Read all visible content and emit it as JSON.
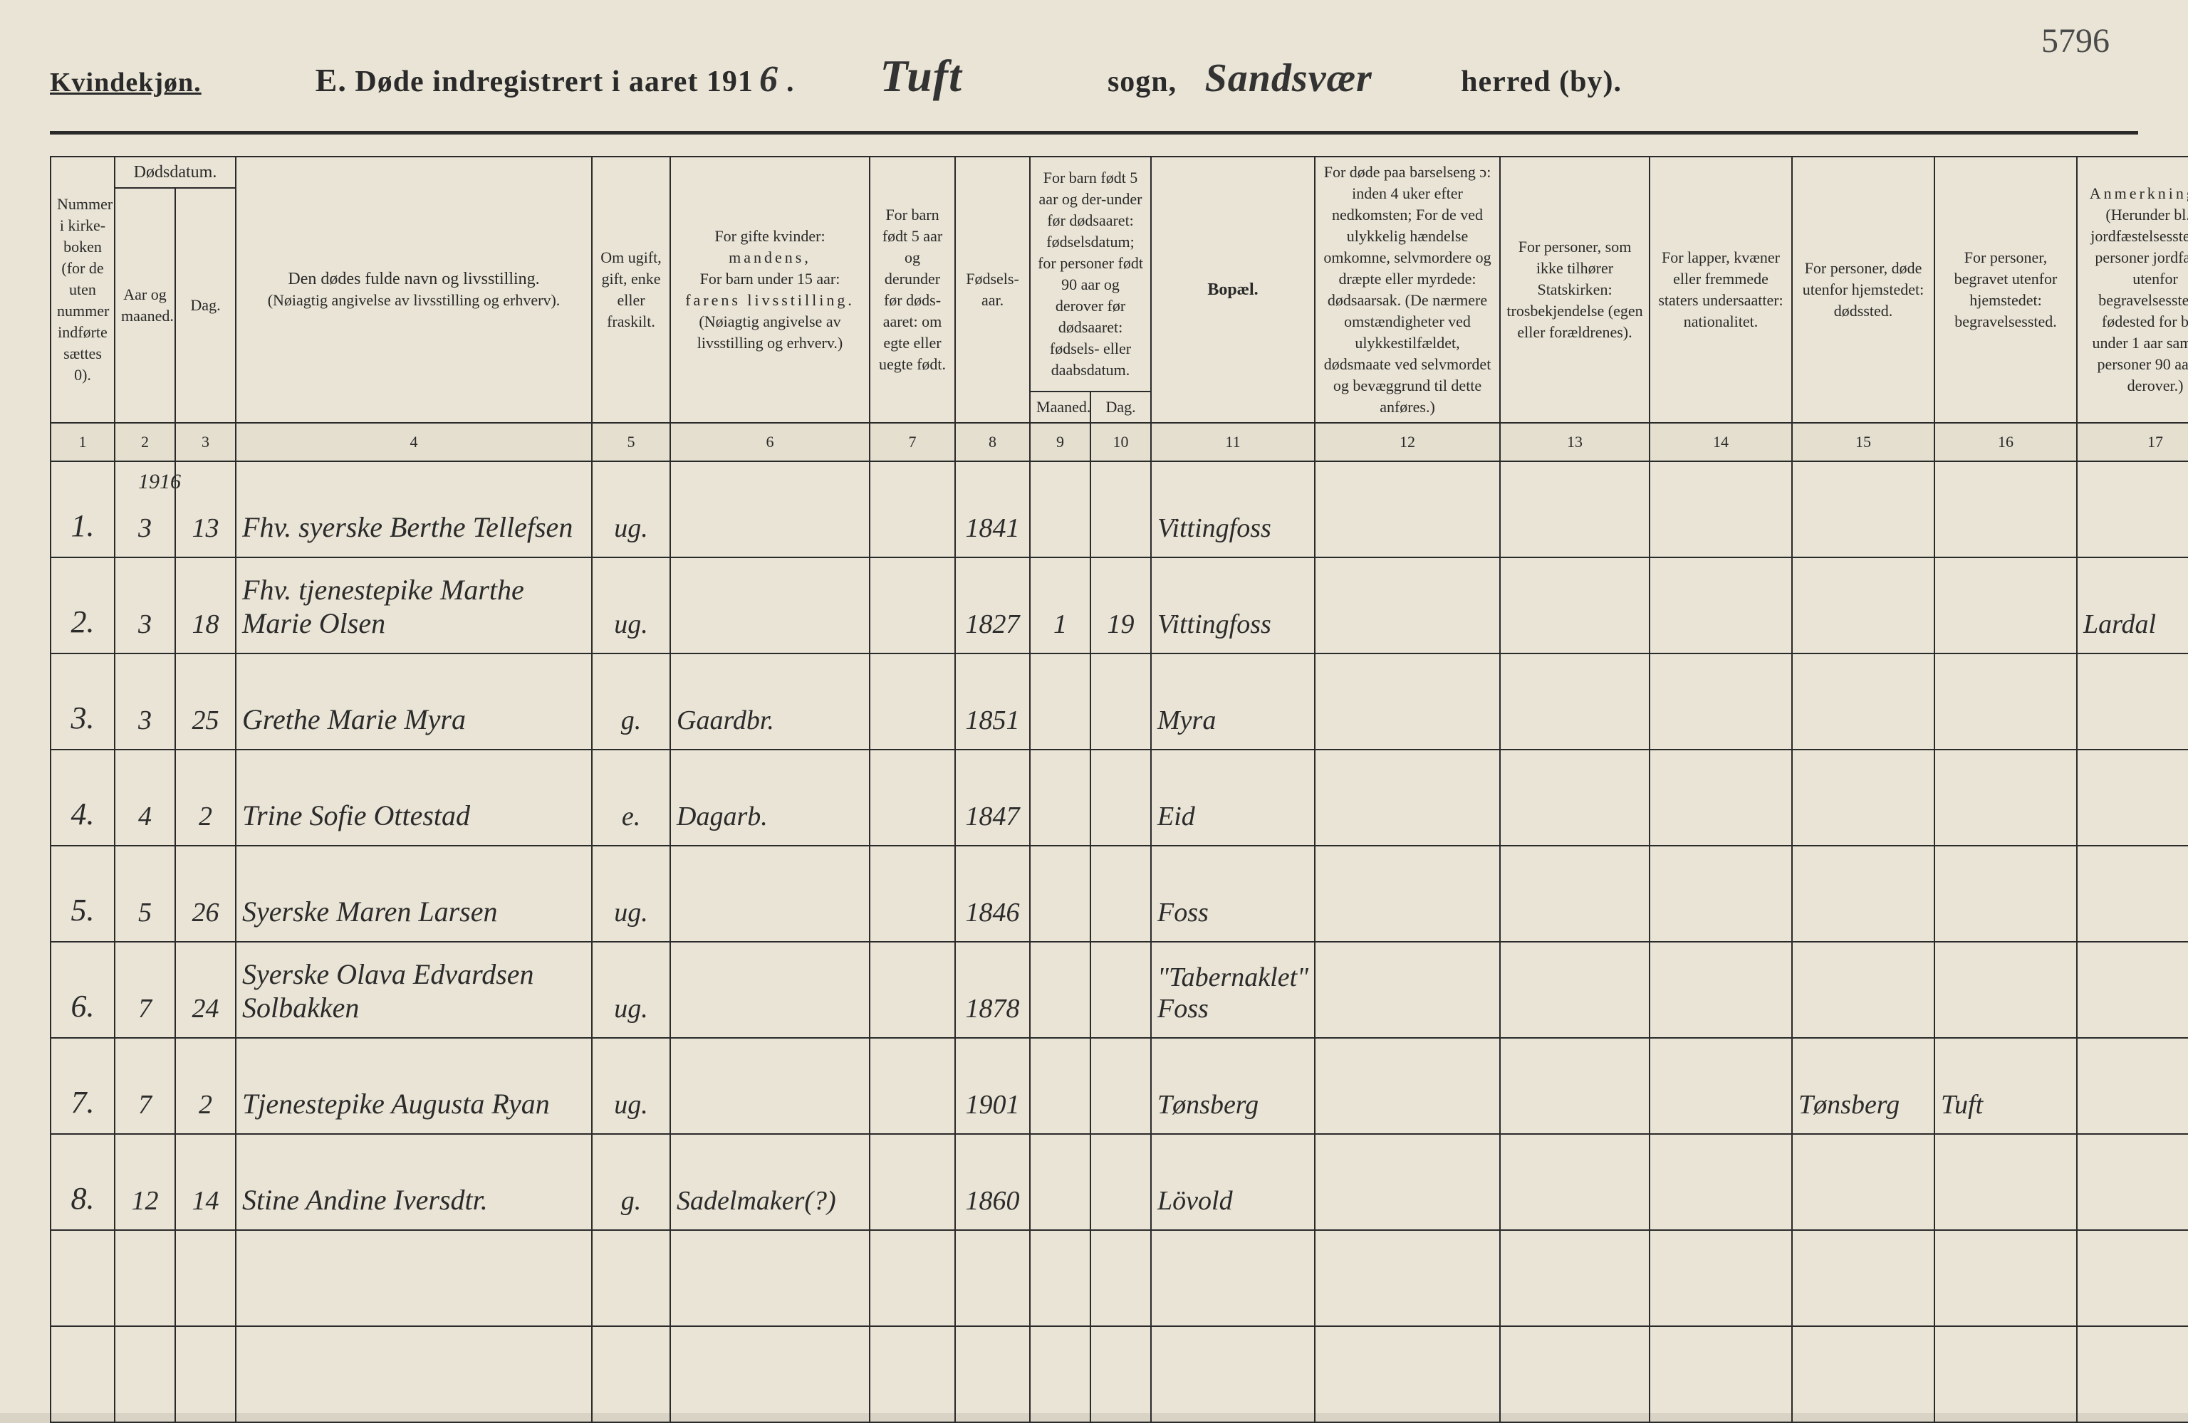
{
  "page_number_handwritten": "5796",
  "header": {
    "gender_label": "Kvindekjøn.",
    "title_prefix": "E.",
    "title_text": "Døde indregistrert i aaret 191",
    "year_suffix_handwritten": "6",
    "period": ".",
    "parish_handwritten": "Tuft",
    "parish_label": "sogn,",
    "district_handwritten": "Sandsvær",
    "district_label": "herred (by)."
  },
  "columns": {
    "c1": "Nummer i kirke-boken (for de uten nummer indførte sættes 0).",
    "c2_group": "Dødsdatum.",
    "c2": "Aar og maaned.",
    "c3": "Dag.",
    "c4_line1": "Den dødes fulde navn og livsstilling.",
    "c4_line2": "(Nøiagtig angivelse av livsstilling og erhverv).",
    "c5": "Om ugift, gift, enke eller fraskilt.",
    "c6_line1": "For gifte kvinder:",
    "c6_line2": "mandens,",
    "c6_line3": "For barn under 15 aar:",
    "c6_line4": "farens livsstilling.",
    "c6_line5": "(Nøiagtig angivelse av livsstilling og erhverv.)",
    "c7": "For barn født 5 aar og derunder før døds-aaret: om egte eller uegte født.",
    "c8": "Fødsels-aar.",
    "c9_10_top": "For barn født 5 aar og der-under før dødsaaret: fødselsdatum; for personer født 90 aar og derover før dødsaaret: fødsels- eller daabsdatum.",
    "c9": "Maaned.",
    "c10": "Dag.",
    "c11": "Bopæl.",
    "c12": "For døde paa barselseng ɔ: inden 4 uker efter nedkomsten; For de ved ulykkelig hændelse omkomne, selvmordere og dræpte eller myrdede: dødsaarsak. (De nærmere omstændigheter ved ulykkestilfældet, dødsmaate ved selvmordet og bevæggrund til dette anføres.)",
    "c13": "For personer, som ikke tilhører Statskirken: trosbekjendelse (egen eller forældrenes).",
    "c14": "For lapper, kvæner eller fremmede staters undersaatter: nationalitet.",
    "c15": "For personer, døde utenfor hjemstedet: dødssted.",
    "c16": "For personer, begravet utenfor hjemstedet: begravelsessted.",
    "c17_title": "Anmerkninger.",
    "c17_body": "(Herunder bl. a. jordfæstelsessted for personer jordfæstet utenfor begravelsesstedet, fødested for barn under 1 aar samt for personer 90 aar og derover.)",
    "numbers": [
      "1",
      "2",
      "3",
      "4",
      "5",
      "6",
      "7",
      "8",
      "9",
      "10",
      "11",
      "12",
      "13",
      "14",
      "15",
      "16",
      "17"
    ]
  },
  "year_over_first_row": "1916",
  "rows": [
    {
      "n": "1.",
      "month": "3",
      "day": "13",
      "name": "Fhv. syerske Berthe Tellefsen",
      "status": "ug.",
      "col6": "",
      "col7": "",
      "birth": "1841",
      "m9": "",
      "d10": "",
      "residence": "Vittingfoss",
      "c12": "",
      "c13": "",
      "c14": "",
      "c15": "",
      "c16": "",
      "c17": ""
    },
    {
      "n": "2.",
      "month": "3",
      "day": "18",
      "name": "Fhv. tjenestepike Marthe Marie Olsen",
      "status": "ug.",
      "col6": "",
      "col7": "",
      "birth": "1827",
      "m9": "1",
      "d10": "19",
      "residence": "Vittingfoss",
      "c12": "",
      "c13": "",
      "c14": "",
      "c15": "",
      "c16": "",
      "c17": "Lardal"
    },
    {
      "n": "3.",
      "month": "3",
      "day": "25",
      "name": "Grethe Marie Myra",
      "status": "g.",
      "col6": "Gaardbr.",
      "col7": "",
      "birth": "1851",
      "m9": "",
      "d10": "",
      "residence": "Myra",
      "c12": "",
      "c13": "",
      "c14": "",
      "c15": "",
      "c16": "",
      "c17": ""
    },
    {
      "n": "4.",
      "month": "4",
      "day": "2",
      "name": "Trine Sofie Ottestad",
      "status": "e.",
      "col6": "Dagarb.",
      "col7": "",
      "birth": "1847",
      "m9": "",
      "d10": "",
      "residence": "Eid",
      "c12": "",
      "c13": "",
      "c14": "",
      "c15": "",
      "c16": "",
      "c17": ""
    },
    {
      "n": "5.",
      "month": "5",
      "day": "26",
      "name": "Syerske Maren Larsen",
      "status": "ug.",
      "col6": "",
      "col7": "",
      "birth": "1846",
      "m9": "",
      "d10": "",
      "residence": "Foss",
      "c12": "",
      "c13": "",
      "c14": "",
      "c15": "",
      "c16": "",
      "c17": ""
    },
    {
      "n": "6.",
      "month": "7",
      "day": "24",
      "name": "Syerske Olava Edvardsen  Solbakken",
      "status": "ug.",
      "col6": "",
      "col7": "",
      "birth": "1878",
      "m9": "",
      "d10": "",
      "residence": "\"Tabernaklet\" Foss",
      "c12": "",
      "c13": "",
      "c14": "",
      "c15": "",
      "c16": "",
      "c17": ""
    },
    {
      "n": "7.",
      "month": "7",
      "day": "2",
      "name": "Tjenestepike Augusta Ryan",
      "status": "ug.",
      "col6": "",
      "col7": "",
      "birth": "1901",
      "m9": "",
      "d10": "",
      "residence": "Tønsberg",
      "c12": "",
      "c13": "",
      "c14": "",
      "c15": "Tønsberg",
      "c16": "Tuft",
      "c17": ""
    },
    {
      "n": "8.",
      "month": "12",
      "day": "14",
      "name": "Stine Andine Iversdtr.",
      "status": "g.",
      "col6": "Sadelmaker(?)",
      "col7": "",
      "birth": "1860",
      "m9": "",
      "d10": "",
      "residence": "Lövold",
      "c12": "",
      "c13": "",
      "c14": "",
      "c15": "",
      "c16": "",
      "c17": ""
    },
    {
      "n": "",
      "month": "",
      "day": "",
      "name": "",
      "status": "",
      "col6": "",
      "col7": "",
      "birth": "",
      "m9": "",
      "d10": "",
      "residence": "",
      "c12": "",
      "c13": "",
      "c14": "",
      "c15": "",
      "c16": "",
      "c17": ""
    },
    {
      "n": "",
      "month": "",
      "day": "",
      "name": "",
      "status": "",
      "col6": "",
      "col7": "",
      "birth": "",
      "m9": "",
      "d10": "",
      "residence": "",
      "c12": "",
      "c13": "",
      "c14": "",
      "c15": "",
      "c16": "",
      "c17": ""
    }
  ]
}
